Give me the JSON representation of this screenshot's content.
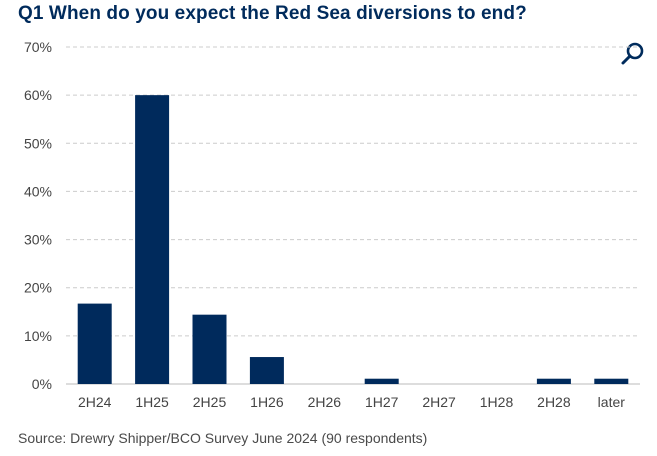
{
  "title": "Q1 When do you expect the Red Sea diversions to end?",
  "source": "Source: Drewry Shipper/BCO Survey June 2024 (90 respondents)",
  "zoom_icon": "magnifier-icon",
  "colors": {
    "bar": "#002a5c",
    "title": "#002b5c",
    "grid": "#cccccc",
    "axis_text": "#444444"
  },
  "chart_data": {
    "type": "bar",
    "title": "Q1 When do you expect the Red Sea diversions to end?",
    "categories": [
      "2H24",
      "1H25",
      "2H25",
      "1H26",
      "2H26",
      "1H27",
      "2H27",
      "1H28",
      "2H28",
      "later"
    ],
    "values": [
      16.7,
      60.0,
      14.4,
      5.6,
      0.0,
      1.1,
      0.0,
      0.0,
      1.1,
      1.1
    ],
    "ylim": [
      0,
      70
    ],
    "yticks": [
      "0%",
      "10%",
      "20%",
      "30%",
      "40%",
      "50%",
      "60%",
      "70%"
    ],
    "ytick_values": [
      0,
      10,
      20,
      30,
      40,
      50,
      60,
      70
    ],
    "grid": true,
    "legend": "none"
  }
}
